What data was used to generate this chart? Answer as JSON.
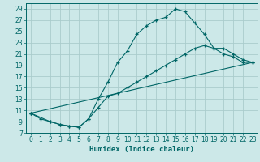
{
  "xlabel": "Humidex (Indice chaleur)",
  "bg_color": "#cce8e8",
  "grid_color": "#aacccc",
  "line_color": "#006666",
  "xlim": [
    -0.5,
    23.5
  ],
  "ylim": [
    7,
    30
  ],
  "xticks": [
    0,
    1,
    2,
    3,
    4,
    5,
    6,
    7,
    8,
    9,
    10,
    11,
    12,
    13,
    14,
    15,
    16,
    17,
    18,
    19,
    20,
    21,
    22,
    23
  ],
  "yticks": [
    7,
    9,
    11,
    13,
    15,
    17,
    19,
    21,
    23,
    25,
    27,
    29
  ],
  "line1_x": [
    0,
    1,
    2,
    3,
    4,
    5,
    6,
    7,
    8,
    9,
    10,
    11,
    12,
    13,
    14,
    15,
    16,
    17,
    18,
    19,
    20,
    21,
    22,
    23
  ],
  "line1_y": [
    10.5,
    9.5,
    9.0,
    8.5,
    8.2,
    8.0,
    9.5,
    13.0,
    16.0,
    19.5,
    21.5,
    24.5,
    26.0,
    27.0,
    27.5,
    29.0,
    28.5,
    26.5,
    24.5,
    22.0,
    21.0,
    20.5,
    19.5,
    19.5
  ],
  "line2_x": [
    0,
    2,
    3,
    4,
    5,
    6,
    7,
    8,
    9,
    10,
    11,
    12,
    13,
    14,
    15,
    16,
    17,
    18,
    19,
    20,
    21,
    22,
    23
  ],
  "line2_y": [
    10.5,
    9.0,
    8.5,
    8.2,
    8.0,
    9.5,
    11.5,
    13.5,
    14.0,
    15.0,
    16.0,
    17.0,
    18.0,
    19.0,
    20.0,
    21.0,
    22.0,
    22.5,
    22.0,
    22.0,
    21.0,
    20.0,
    19.5
  ],
  "line3_x": [
    0,
    23
  ],
  "line3_y": [
    10.5,
    19.5
  ]
}
